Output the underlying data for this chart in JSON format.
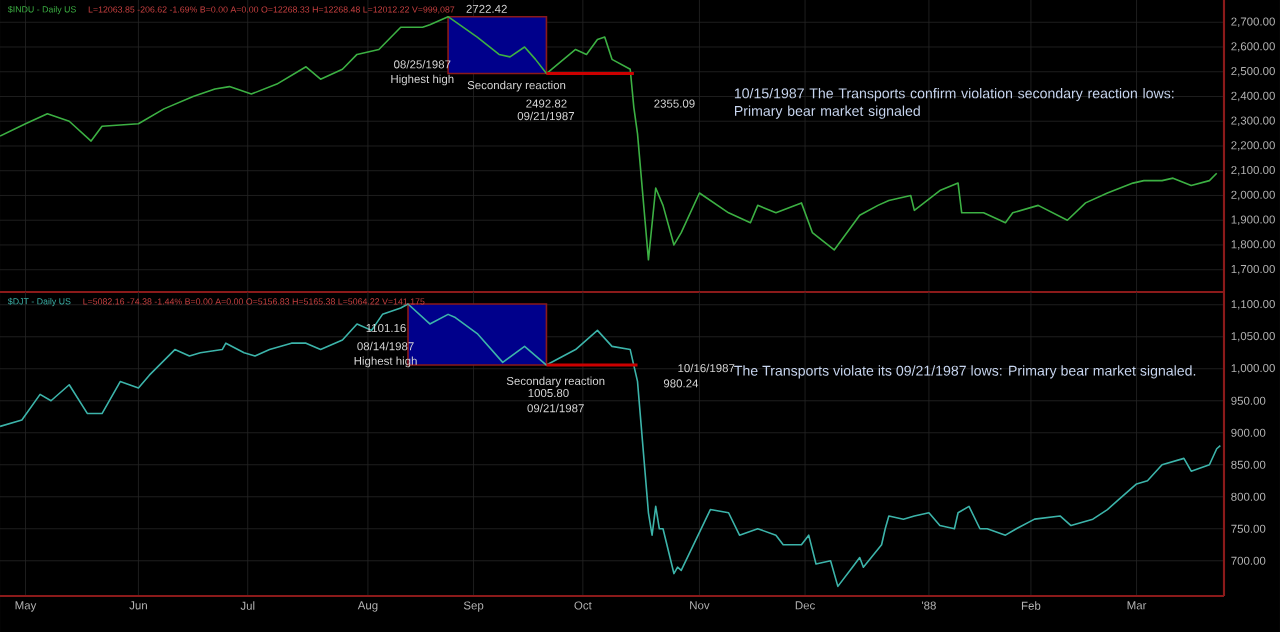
{
  "chart_data": [
    {
      "type": "line",
      "title": "$INDU - Daily US",
      "subtitle": "L=12063.85 -206.62 -1.69% B=0.00 A=0.00 O=12268.33 H=12268.48 L=12012.22 V=999,087",
      "grid": true,
      "tick_labels": "y",
      "xlim": [
        "1987-04-24",
        "1988-03-25"
      ],
      "xticks": [
        {
          "value": "1987-05-01",
          "label": null
        },
        {
          "value": "1987-06-01",
          "label": null
        },
        {
          "value": "1987-07-01",
          "label": null
        },
        {
          "value": "1987-08-03",
          "label": null
        },
        {
          "value": "1987-09-01",
          "label": null
        },
        {
          "value": "1987-10-01",
          "label": null
        },
        {
          "value": "1987-11-02",
          "label": null
        },
        {
          "value": "1987-12-01",
          "label": null
        },
        {
          "value": "1988-01-04",
          "label": null
        },
        {
          "value": "1988-02-01",
          "label": null
        },
        {
          "value": "1988-03-01",
          "label": null
        }
      ],
      "ylim": [
        1610,
        2790
      ],
      "yticks": [
        {
          "value": 1700,
          "label": "1,700.00"
        },
        {
          "value": 1800,
          "label": "1,800.00"
        },
        {
          "value": 1900,
          "label": "1,900.00"
        },
        {
          "value": 2000,
          "label": "2,000.00"
        },
        {
          "value": 2100,
          "label": "2,100.00"
        },
        {
          "value": 2200,
          "label": "2,200.00"
        },
        {
          "value": 2300,
          "label": "2,300.00"
        },
        {
          "value": 2400,
          "label": "2,400.00"
        },
        {
          "value": 2500,
          "label": "2,500.00"
        },
        {
          "value": 2600,
          "label": "2,600.00"
        },
        {
          "value": 2700,
          "label": "2,700.00"
        }
      ],
      "bands": [
        {
          "axis": "x",
          "from": "1987-08-25",
          "to": "1987-09-21",
          "color": "#00008b"
        }
      ],
      "series": [
        {
          "color": "#3cb043",
          "x": [
            "1987-04-24",
            "1987-05-01",
            "1987-05-07",
            "1987-05-13",
            "1987-05-19",
            "1987-05-22",
            "1987-06-01",
            "1987-06-08",
            "1987-06-16",
            "1987-06-22",
            "1987-06-26",
            "1987-07-02",
            "1987-07-09",
            "1987-07-17",
            "1987-07-21",
            "1987-07-27",
            "1987-07-31",
            "1987-08-06",
            "1987-08-12",
            "1987-08-18",
            "1987-08-20",
            "1987-08-25",
            "1987-09-02",
            "1987-09-08",
            "1987-09-11",
            "1987-09-15",
            "1987-09-18",
            "1987-09-21",
            "1987-09-29",
            "1987-10-02",
            "1987-10-05",
            "1987-10-07",
            "1987-10-09",
            "1987-10-14",
            "1987-10-15",
            "1987-10-16",
            "1987-10-19",
            "1987-10-21",
            "1987-10-23",
            "1987-10-26",
            "1987-10-28",
            "1987-11-02",
            "1987-11-10",
            "1987-11-16",
            "1987-11-18",
            "1987-11-23",
            "1987-11-30",
            "1987-12-03",
            "1987-12-09",
            "1987-12-16",
            "1987-12-21",
            "1987-12-24",
            "1987-12-30",
            "1987-12-31",
            "1988-01-07",
            "1988-01-12",
            "1988-01-13",
            "1988-01-19",
            "1988-01-25",
            "1988-01-27",
            "1988-02-03",
            "1988-02-11",
            "1988-02-16",
            "1988-02-22",
            "1988-02-29",
            "1988-03-03",
            "1988-03-08",
            "1988-03-11",
            "1988-03-16",
            "1988-03-21",
            "1988-03-23"
          ],
          "values": [
            2240,
            2290,
            2330,
            2300,
            2220,
            2280,
            2290,
            2350,
            2400,
            2430,
            2440,
            2410,
            2450,
            2520,
            2470,
            2510,
            2570,
            2590,
            2680,
            2680,
            2690,
            2722.42,
            2640,
            2570,
            2560,
            2600,
            2550,
            2492.82,
            2590,
            2570,
            2630,
            2640,
            2550,
            2510,
            2355.09,
            2250,
            1740,
            2030,
            1960,
            1800,
            1850,
            2010,
            1930,
            1890,
            1960,
            1930,
            1970,
            1850,
            1780,
            1920,
            1960,
            1980,
            2000,
            1940,
            2020,
            2050,
            1930,
            1930,
            1890,
            1930,
            1960,
            1900,
            1970,
            2010,
            2050,
            2060,
            2060,
            2070,
            2040,
            2060,
            2090
          ]
        },
        {
          "type": "line",
          "color": "#cc0000",
          "x": [
            "1987-09-21",
            "1987-10-15"
          ],
          "values": [
            2492.82,
            2492.82
          ]
        }
      ],
      "annotations": [
        {
          "text": "2722.42",
          "x": "1987-08-25",
          "y": 2722.42
        },
        "08/25/1987",
        "Highest high",
        "Secondary reaction",
        {
          "text": "2492.82",
          "x": "1987-09-21",
          "y": 2492.82
        },
        "09/21/1987",
        {
          "text": "2355.09",
          "x": "1987-10-15",
          "y": 2355.09
        },
        "10/15/1987 The Transports confirm violation secondary reaction lows: Primary bear market signaled"
      ]
    },
    {
      "type": "line",
      "title": "$DJT - Daily US",
      "subtitle": "L=5082.16 -74.38 -1.44% B=0.00 A=0.00 O=5156.83 H=5165.38 L=5064.22 V=141,175",
      "grid": true,
      "xlim": [
        "1987-04-24",
        "1988-03-25"
      ],
      "xticks": [
        {
          "value": "1987-05-01",
          "label": "May"
        },
        {
          "value": "1987-06-01",
          "label": "Jun"
        },
        {
          "value": "1987-07-01",
          "label": "Jul"
        },
        {
          "value": "1987-08-03",
          "label": "Aug"
        },
        {
          "value": "1987-09-01",
          "label": "Sep"
        },
        {
          "value": "1987-10-01",
          "label": "Oct"
        },
        {
          "value": "1987-11-02",
          "label": "Nov"
        },
        {
          "value": "1987-12-01",
          "label": "Dec"
        },
        {
          "value": "1988-01-04",
          "label": "'88"
        },
        {
          "value": "1988-02-01",
          "label": "Feb"
        },
        {
          "value": "1988-03-01",
          "label": "Mar"
        }
      ],
      "ylim": [
        645,
        1120
      ],
      "yticks": [
        {
          "value": 700,
          "label": "700.00"
        },
        {
          "value": 750,
          "label": "750.00"
        },
        {
          "value": 800,
          "label": "800.00"
        },
        {
          "value": 850,
          "label": "850.00"
        },
        {
          "value": 900,
          "label": "900.00"
        },
        {
          "value": 950,
          "label": "950.00"
        },
        {
          "value": 1000,
          "label": "1,000.00"
        },
        {
          "value": 1050,
          "label": "1,050.00"
        },
        {
          "value": 1100,
          "label": "1,100.00"
        }
      ],
      "bands": [
        {
          "axis": "x",
          "from": "1987-08-14",
          "to": "1987-09-21",
          "color": "#00008b"
        }
      ],
      "series": [
        {
          "color": "#3cb4aa",
          "x": [
            "1987-04-24",
            "1987-04-30",
            "1987-05-05",
            "1987-05-08",
            "1987-05-13",
            "1987-05-18",
            "1987-05-22",
            "1987-05-27",
            "1987-06-01",
            "1987-06-04",
            "1987-06-11",
            "1987-06-15",
            "1987-06-18",
            "1987-06-24",
            "1987-06-25",
            "1987-06-30",
            "1987-07-03",
            "1987-07-07",
            "1987-07-13",
            "1987-07-17",
            "1987-07-21",
            "1987-07-27",
            "1987-07-31",
            "1987-08-04",
            "1987-08-07",
            "1987-08-12",
            "1987-08-14",
            "1987-08-20",
            "1987-08-25",
            "1987-08-27",
            "1987-09-02",
            "1987-09-09",
            "1987-09-15",
            "1987-09-21",
            "1987-09-29",
            "1987-10-05",
            "1987-10-09",
            "1987-10-14",
            "1987-10-15",
            "1987-10-16",
            "1987-10-19",
            "1987-10-20",
            "1987-10-21",
            "1987-10-22",
            "1987-10-23",
            "1987-10-26",
            "1987-10-27",
            "1987-10-28",
            "1987-11-05",
            "1987-11-10",
            "1987-11-13",
            "1987-11-18",
            "1987-11-23",
            "1987-11-25",
            "1987-11-30",
            "1987-12-02",
            "1987-12-04",
            "1987-12-08",
            "1987-12-10",
            "1987-12-14",
            "1987-12-16",
            "1987-12-17",
            "1987-12-22",
            "1987-12-23",
            "1987-12-24",
            "1987-12-28",
            "1987-12-31",
            "1988-01-04",
            "1988-01-07",
            "1988-01-11",
            "1988-01-12",
            "1988-01-15",
            "1988-01-18",
            "1988-01-20",
            "1988-01-25",
            "1988-01-28",
            "1988-02-02",
            "1988-02-09",
            "1988-02-12",
            "1988-02-18",
            "1988-02-22",
            "1988-02-25",
            "1988-03-01",
            "1988-03-04",
            "1988-03-08",
            "1988-03-14",
            "1988-03-16",
            "1988-03-21",
            "1988-03-23",
            "1988-03-24"
          ],
          "values": [
            910,
            920,
            960,
            950,
            975,
            930,
            930,
            980,
            970,
            990,
            1030,
            1020,
            1025,
            1030,
            1040,
            1025,
            1020,
            1030,
            1040,
            1040,
            1030,
            1045,
            1070,
            1060,
            1085,
            1095,
            1101.16,
            1070,
            1085,
            1080,
            1055,
            1010,
            1035,
            1005.8,
            1030,
            1060,
            1035,
            1030,
            1005,
            980.24,
            775,
            740,
            785,
            750,
            750,
            680,
            690,
            685,
            780,
            775,
            740,
            750,
            740,
            725,
            725,
            740,
            695,
            700,
            660,
            690,
            705,
            690,
            725,
            750,
            770,
            765,
            770,
            775,
            755,
            750,
            775,
            785,
            750,
            750,
            740,
            750,
            765,
            770,
            755,
            765,
            780,
            795,
            820,
            825,
            850,
            860,
            840,
            850,
            875,
            880
          ]
        },
        {
          "type": "line",
          "color": "#cc0000",
          "x": [
            "1987-09-21",
            "1987-10-16"
          ],
          "values": [
            1005.8,
            1005.8
          ]
        }
      ],
      "annotations": [
        {
          "text": "1101.16",
          "x": "1987-08-14",
          "y": 1101.16
        },
        "08/14/1987",
        "Highest high",
        "Secondary reaction",
        {
          "text": "1005.80",
          "x": "1987-09-21",
          "y": 1005.8
        },
        "09/21/1987",
        "10/16/1987",
        {
          "text": "980.24",
          "x": "1987-10-16",
          "y": 980.24
        },
        "The Transports violate  its  09/21/1987 lows: Primary bear market signaled."
      ]
    }
  ]
}
